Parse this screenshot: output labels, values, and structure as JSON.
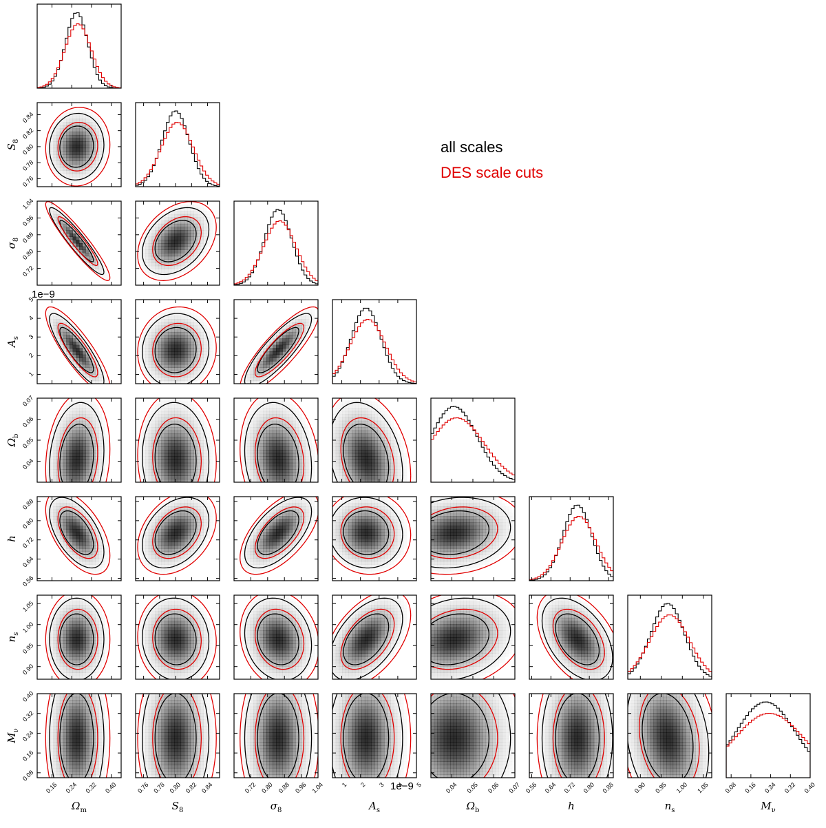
{
  "chart_data": {
    "type": "corner",
    "series": [
      {
        "name": "all scales",
        "color": "#000000"
      },
      {
        "name": "DES scale cuts",
        "color": "#e00000"
      }
    ],
    "legend_position": "upper-right",
    "parameters": [
      {
        "name": "Om",
        "label": "Ωm",
        "range": [
          0.1,
          0.44
        ],
        "mean": 0.26,
        "sd": 0.045,
        "ticks": [
          "0.16",
          "0.24",
          "0.32",
          "0.40"
        ],
        "tick_values": [
          0.16,
          0.24,
          0.32,
          0.4
        ]
      },
      {
        "name": "S8",
        "label": "S8",
        "range": [
          0.75,
          0.855
        ],
        "mean": 0.8,
        "sd": 0.017,
        "ticks": [
          "0.76",
          "0.78",
          "0.80",
          "0.82",
          "0.84"
        ],
        "tick_values": [
          0.76,
          0.78,
          0.8,
          0.82,
          0.84
        ]
      },
      {
        "name": "sigma8",
        "label": "σ8",
        "range": [
          0.64,
          1.04
        ],
        "mean": 0.85,
        "sd": 0.065,
        "ticks": [
          "0.72",
          "0.80",
          "0.88",
          "0.96",
          "1.04"
        ],
        "tick_values": [
          0.72,
          0.8,
          0.88,
          0.96,
          1.04
        ]
      },
      {
        "name": "As",
        "label": "As",
        "range": [
          0.5,
          5.0
        ],
        "mean": 2.3,
        "sd": 0.8,
        "ticks": [
          "1",
          "2",
          "3",
          "4",
          "5"
        ],
        "tick_values": [
          1,
          2,
          3,
          4,
          5
        ],
        "multiplier": "1e−9"
      },
      {
        "name": "Ob",
        "label": "Ωb",
        "range": [
          0.03,
          0.07
        ],
        "mean": 0.041,
        "sd": 0.011,
        "ticks": [
          "0.04",
          "0.05",
          "0.06",
          "0.07"
        ],
        "tick_values": [
          0.04,
          0.05,
          0.06,
          0.07
        ]
      },
      {
        "name": "h",
        "label": "h",
        "range": [
          0.55,
          0.9
        ],
        "mean": 0.75,
        "sd": 0.06,
        "ticks": [
          "0.56",
          "0.64",
          "0.72",
          "0.80",
          "0.88"
        ],
        "tick_values": [
          0.56,
          0.64,
          0.72,
          0.8,
          0.88
        ]
      },
      {
        "name": "ns",
        "label": "ns",
        "range": [
          0.87,
          1.07
        ],
        "mean": 0.965,
        "sd": 0.04,
        "ticks": [
          "0.90",
          "0.95",
          "1.00",
          "1.05"
        ],
        "tick_values": [
          0.9,
          0.95,
          1.0,
          1.05
        ]
      },
      {
        "name": "Mnu",
        "label": "Mν",
        "range": [
          0.06,
          0.4
        ],
        "mean": 0.22,
        "sd": 0.12,
        "ticks": [
          "0.08",
          "0.16",
          "0.24",
          "0.32",
          "0.40"
        ],
        "tick_values": [
          0.08,
          0.16,
          0.24,
          0.32,
          0.4
        ]
      }
    ],
    "correlations": {
      "Om,S8": 0.05,
      "Om,sigma8": -0.93,
      "S8,sigma8": 0.35,
      "Om,As": -0.85,
      "S8,As": 0.05,
      "sigma8,As": 0.85,
      "Om,Ob": 0.15,
      "S8,Ob": -0.05,
      "sigma8,Ob": -0.15,
      "As,Ob": -0.25,
      "Om,h": -0.55,
      "S8,h": 0.35,
      "sigma8,h": 0.6,
      "As,h": -0.05,
      "Ob,h": 0.15,
      "Om,ns": 0.0,
      "S8,ns": -0.05,
      "sigma8,ns": -0.15,
      "As,ns": 0.5,
      "Ob,ns": 0.2,
      "h,ns": -0.45,
      "Om,Mnu": 0.0,
      "S8,Mnu": 0.0,
      "sigma8,Mnu": 0.0,
      "As,Mnu": 0.0,
      "Ob,Mnu": 0.0,
      "h,Mnu": 0.0,
      "ns,Mnu": -0.2
    },
    "contour_levels": [
      "68%",
      "95%"
    ],
    "colors": {
      "all_scales": "#000000",
      "des_scale_cuts": "#e00000",
      "density": "#000000"
    }
  }
}
